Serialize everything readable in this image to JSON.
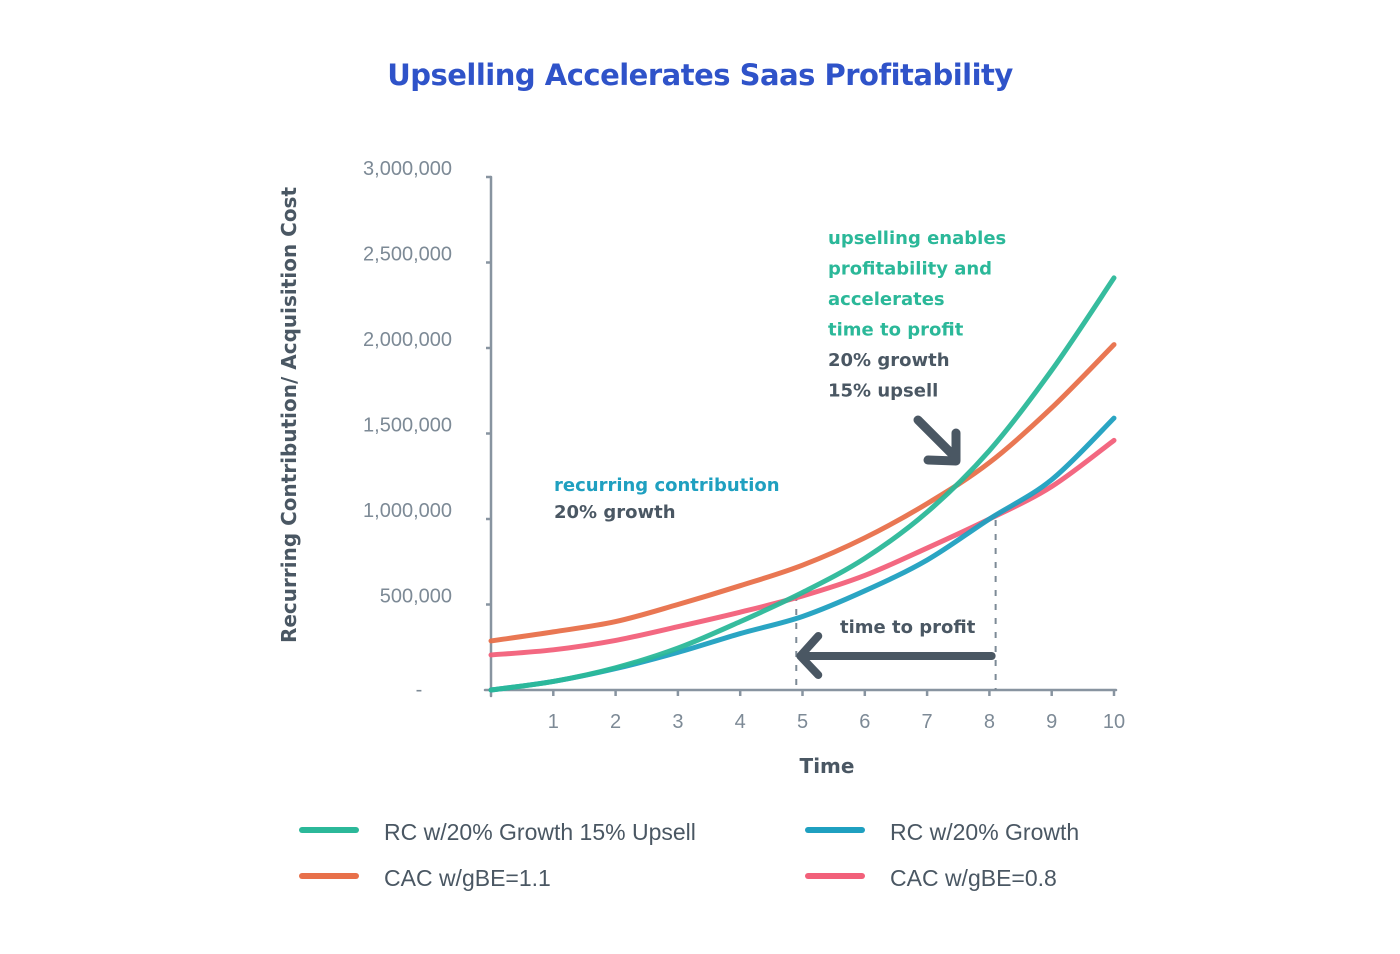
{
  "chart_data": {
    "type": "line",
    "title": "Upselling Accelerates Saas Profitability",
    "xlabel": "Time",
    "ylabel": "Recurring Contribution/ Acquisition Cost",
    "x": [
      0,
      1,
      2,
      3,
      4,
      5,
      6,
      7,
      8,
      9,
      10
    ],
    "xlim": [
      0,
      10
    ],
    "ylim": [
      0,
      3000000
    ],
    "x_tick_labels": [
      "1",
      "2",
      "3",
      "4",
      "5",
      "6",
      "7",
      "8",
      "9",
      "10"
    ],
    "x_tick_values": [
      1,
      2,
      3,
      4,
      5,
      6,
      7,
      8,
      9,
      10
    ],
    "y_tick_labels": [
      "-",
      "500,000",
      "1,000,000",
      "1,500,000",
      "2,000,000",
      "2,500,000",
      "3,000,000"
    ],
    "y_tick_values": [
      0,
      500000,
      1000000,
      1500000,
      2000000,
      2500000,
      3000000
    ],
    "grid": false,
    "legend_position": "bottom",
    "series": [
      {
        "name": "RC w/20% Growth 15% Upsell",
        "color": "#2bb899",
        "values": [
          0,
          50000,
          130000,
          245000,
          400000,
          570000,
          770000,
          1040000,
          1400000,
          1870000,
          2410000
        ]
      },
      {
        "name": "RC w/20% Growth",
        "color": "#1fa0c0",
        "values": [
          0,
          50000,
          125000,
          220000,
          330000,
          430000,
          580000,
          760000,
          1000000,
          1230000,
          1590000
        ]
      },
      {
        "name": "CAC w/gBE=1.1",
        "color": "#e8704a",
        "values": [
          287000,
          340000,
          400000,
          500000,
          610000,
          730000,
          890000,
          1090000,
          1330000,
          1650000,
          2020000
        ]
      },
      {
        "name": "CAC w/gBE=0.8",
        "color": "#f2607a",
        "values": [
          205000,
          235000,
          290000,
          370000,
          455000,
          550000,
          670000,
          830000,
          1000000,
          1190000,
          1460000
        ]
      }
    ],
    "annotations": [
      {
        "id": "upsell-note",
        "lines": [
          {
            "text": "upselling enables",
            "color": "#2bb899"
          },
          {
            "text": "profitability and",
            "color": "#2bb899"
          },
          {
            "text": "accelerates",
            "color": "#2bb899"
          },
          {
            "text": "time to profit",
            "color": "#2bb899"
          },
          {
            "text": "20% growth",
            "color": "#4a5763"
          },
          {
            "text": "15% upsell",
            "color": "#4a5763"
          }
        ],
        "points_to_x": 7.5
      },
      {
        "id": "rc-note",
        "lines": [
          {
            "text": "recurring contribution",
            "color": "#1fa0c0"
          },
          {
            "text": "20% growth",
            "color": "#4a5763"
          }
        ]
      },
      {
        "id": "time-to-profit",
        "text": "time to profit",
        "color": "#4a5763",
        "from_x": 8.1,
        "to_x": 4.9
      }
    ]
  }
}
